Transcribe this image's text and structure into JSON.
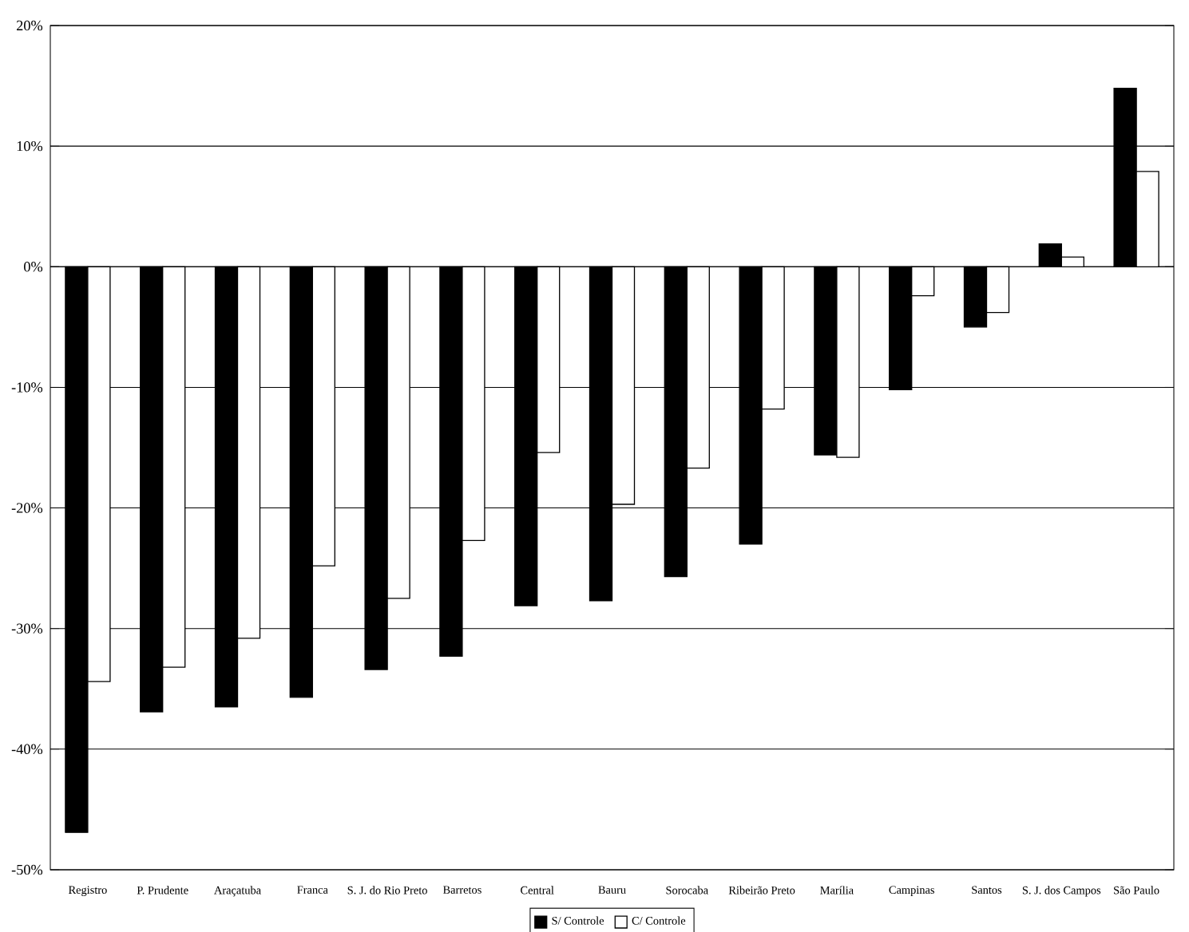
{
  "chart_data": {
    "type": "bar",
    "categories": [
      "Registro",
      "P. Prudente",
      "Araçatuba",
      "Franca",
      "S. J. do Rio Preto",
      "Barretos",
      "Central",
      "Bauru",
      "Sorocaba",
      "Ribeirão Preto",
      "Marília",
      "Campinas",
      "Santos",
      "S. J. dos Campos",
      "São Paulo"
    ],
    "series": [
      {
        "name": "S/ Controle",
        "color": "#000000",
        "values": [
          -46.9,
          -36.9,
          -36.5,
          -35.7,
          -33.4,
          -32.3,
          -28.1,
          -27.7,
          -25.7,
          -23.0,
          -15.6,
          -10.2,
          -5.0,
          1.9,
          14.8
        ]
      },
      {
        "name": "C/ Controle",
        "color": "#ffffff",
        "values": [
          -34.4,
          -33.2,
          -30.8,
          -24.8,
          -27.5,
          -22.7,
          -15.4,
          -19.7,
          -16.7,
          -11.8,
          -15.8,
          -2.4,
          -3.8,
          0.8,
          7.9
        ]
      }
    ],
    "ylim": [
      -50,
      20
    ],
    "yticks": [
      {
        "value": -50,
        "label": "-50%"
      },
      {
        "value": -40,
        "label": "-40%"
      },
      {
        "value": -30,
        "label": "-30%"
      },
      {
        "value": -20,
        "label": "-20%"
      },
      {
        "value": -10,
        "label": "-10%"
      },
      {
        "value": 0,
        "label": "0%"
      },
      {
        "value": 10,
        "label": "10%"
      },
      {
        "value": 20,
        "label": "20%"
      }
    ],
    "grid": "y",
    "legend": "bottom"
  }
}
